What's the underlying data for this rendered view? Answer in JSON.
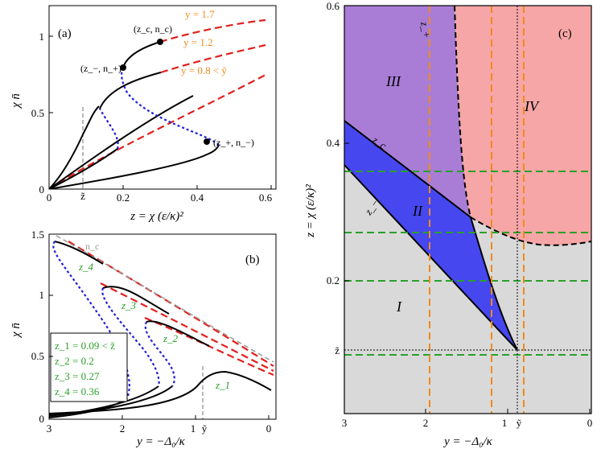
{
  "chart_data": [
    {
      "panel": "(a)",
      "type": "line",
      "xlabel": "z = χ (ε/κ)²",
      "ylabel": "χ n̄",
      "xlim": [
        0,
        0.62
      ],
      "ylim": [
        0,
        1.15
      ],
      "xticks": [
        "0",
        "0.2",
        "0.4",
        "0.6"
      ],
      "yticks": [
        "0",
        "0.5",
        "1"
      ],
      "special_tick": "z̃",
      "annotations": [
        "(a)",
        "(z_c, n_c)",
        "(z_−, n_+)",
        "(z_+, n_−)",
        "y = 1.7",
        "y = 1.2",
        "y = 0.8 < ỹ"
      ],
      "colors": {
        "stable": "#000000",
        "unstable": "#1f1fd6",
        "high": "#e0201c",
        "label": "#f08a1c"
      },
      "series": [
        {
          "name": "y = 0.8 < ỹ",
          "stable": [
            [
              0,
              0
            ],
            [
              0.1,
              0.15
            ],
            [
              0.2,
              0.3
            ],
            [
              0.3,
              0.44
            ],
            [
              0.4,
              0.56
            ],
            [
              0.6,
              0.76
            ]
          ]
        },
        {
          "name": "y = 1.2",
          "stable": [
            [
              0,
              0
            ],
            [
              0.08,
              0.12
            ],
            [
              0.14,
              0.25
            ],
            [
              0.2,
              0.4
            ],
            [
              0.3,
              0.57
            ],
            [
              0.6,
              0.9
            ]
          ],
          "unstable_branch": [
            [
              0.2,
              0.4
            ],
            [
              0.14,
              0.25
            ]
          ]
        },
        {
          "name": "y = 1.7",
          "stable": [
            [
              0,
              0
            ],
            [
              0.1,
              0.1
            ],
            [
              0.3,
              0.2
            ],
            [
              0.44,
              0.33
            ],
            [
              0.2,
              0.82
            ],
            [
              0.31,
              0.98
            ],
            [
              0.6,
              1.1
            ]
          ],
          "unstable_branch": [
            [
              0.44,
              0.33
            ],
            [
              0.2,
              0.82
            ]
          ]
        }
      ],
      "points": [
        {
          "label": "(z_c, n_c)",
          "x": 0.31,
          "y": 0.98
        },
        {
          "label": "(z_−, n_+)",
          "x": 0.2,
          "y": 0.82
        },
        {
          "label": "(z_+, n_−)",
          "x": 0.44,
          "y": 0.33
        }
      ]
    },
    {
      "panel": "(b)",
      "type": "line",
      "xlabel": "y = −Δ₀/κ",
      "ylabel": "χ n̄",
      "xlim": [
        3,
        0
      ],
      "ylim": [
        0,
        1.5
      ],
      "xticks": [
        "3",
        "2",
        "1",
        "ỹ",
        "0"
      ],
      "yticks": [
        "0",
        "0.5",
        "1",
        "1.5"
      ],
      "annotations": [
        "(b)",
        "n_c",
        "z_1",
        "z_2",
        "z_3",
        "z_4"
      ],
      "legend": [
        "z_1 = 0.09 < z̃",
        "z_2 = 0.2",
        "z_3 = 0.27",
        "z_4 = 0.36"
      ],
      "legend_position": "bottom-left",
      "series": [
        {
          "name": "z_1",
          "z": 0.09
        },
        {
          "name": "z_2",
          "z": 0.2
        },
        {
          "name": "z_3",
          "z": 0.27
        },
        {
          "name": "z_4",
          "z": 0.36
        }
      ]
    },
    {
      "panel": "(c)",
      "type": "area",
      "xlabel": "y = −Δ₀/κ",
      "ylabel": "z = χ (ε/κ)²",
      "xlim": [
        3,
        0
      ],
      "ylim": [
        0.05,
        0.6
      ],
      "xticks": [
        "3",
        "2",
        "1",
        "ỹ",
        "0"
      ],
      "yticks": [
        "0.2",
        "0.4",
        "0.6"
      ],
      "special_ytick": "z̃",
      "regions": [
        {
          "name": "I",
          "color": "#d9d9d9"
        },
        {
          "name": "II",
          "color": "#4747f0"
        },
        {
          "name": "III",
          "color": "#a97dd6"
        },
        {
          "name": "IV",
          "color": "#f6a6a6"
        }
      ],
      "curve_labels": [
        "z_c",
        "z_−",
        "z_+"
      ],
      "horizontal_lines_z": [
        0.09,
        0.2,
        0.27,
        0.36
      ],
      "vertical_lines_y": [
        0.8,
        1.2,
        1.7
      ],
      "critical_point": {
        "y": 1.0,
        "z": 0.1
      }
    }
  ]
}
